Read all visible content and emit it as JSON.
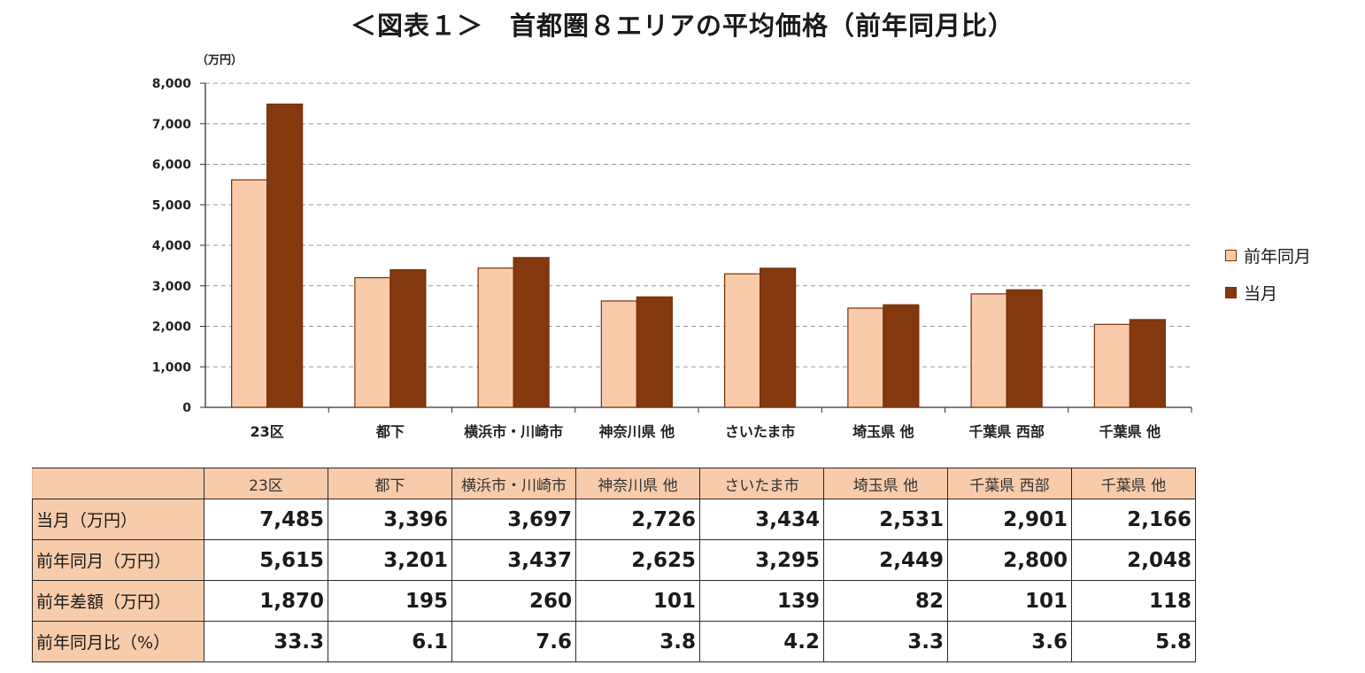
{
  "title": "＜図表１＞　首都圏８エリアの平均価格（前年同月比）",
  "chart_data": {
    "type": "bar",
    "unit_label": "（万円）",
    "ylim": [
      0,
      8000
    ],
    "yticks": [
      "0",
      "1,000",
      "2,000",
      "3,000",
      "4,000",
      "5,000",
      "6,000",
      "7,000",
      "8,000"
    ],
    "grid": "dashed-horizontal",
    "legend_position": "right",
    "categories": [
      "23区",
      "都下",
      "横浜市・川崎市",
      "神奈川県 他",
      "さいたま市",
      "埼玉県 他",
      "千葉県 西部",
      "千葉県 他"
    ],
    "series": [
      {
        "name": "前年同月",
        "color": "#f8ccab",
        "values": [
          5615,
          3201,
          3437,
          2625,
          3295,
          2449,
          2800,
          2048
        ]
      },
      {
        "name": "当月",
        "color": "#84380e",
        "values": [
          7485,
          3396,
          3697,
          2726,
          3434,
          2531,
          2901,
          2166
        ]
      }
    ]
  },
  "table": {
    "header": [
      "",
      "23区",
      "都下",
      "横浜市・川崎市",
      "神奈川県 他",
      "さいたま市",
      "埼玉県 他",
      "千葉県 西部",
      "千葉県 他"
    ],
    "rows": [
      {
        "label": "当月（万円）",
        "values": [
          "7,485",
          "3,396",
          "3,697",
          "2,726",
          "3,434",
          "2,531",
          "2,901",
          "2,166"
        ]
      },
      {
        "label": "前年同月（万円）",
        "values": [
          "5,615",
          "3,201",
          "3,437",
          "2,625",
          "3,295",
          "2,449",
          "2,800",
          "2,048"
        ]
      },
      {
        "label": "前年差額（万円）",
        "values": [
          "1,870",
          "195",
          "260",
          "101",
          "139",
          "82",
          "101",
          "118"
        ]
      },
      {
        "label": "前年同月比（%）",
        "values": [
          "33.3",
          "6.1",
          "7.6",
          "3.8",
          "4.2",
          "3.3",
          "3.6",
          "5.8"
        ]
      }
    ]
  }
}
